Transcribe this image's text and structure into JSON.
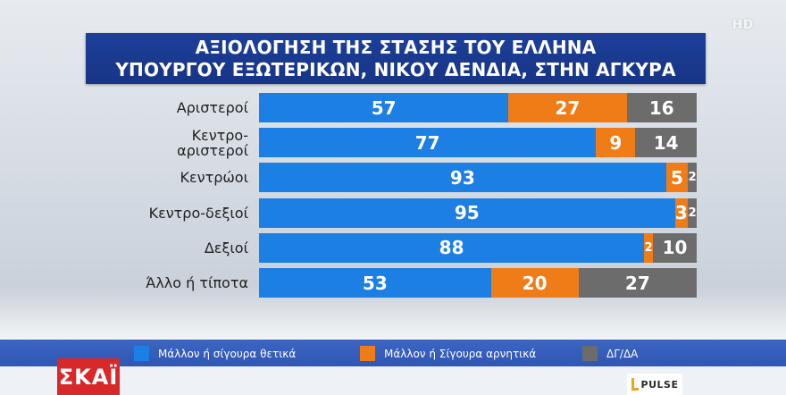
{
  "channel_badge": "HD",
  "title": {
    "line1": "ΑΞΙΟΛΟΓΗΣΗ ΤΗΣ ΣΤΑΣΗΣ ΤΟΥ ΕΛΛΗΝΑ",
    "line2": "ΥΠΟΥΡΓΟΥ ΕΞΩΤΕΡΙΚΩΝ, ΝΙΚΟΥ ΔΕΝΔΙΑ, ΣΤΗΝ ΑΓΚΥΡΑ"
  },
  "chart_data": {
    "type": "bar",
    "orientation": "horizontal",
    "stacked": true,
    "title": "ΑΞΙΟΛΟΓΗΣΗ ΤΗΣ ΣΤΑΣΗΣ ΤΟΥ ΕΛΛΗΝΑ ΥΠΟΥΡΓΟΥ ΕΞΩΤΕΡΙΚΩΝ, ΝΙΚΟΥ ΔΕΝΔΙΑ, ΣΤΗΝ ΑΓΚΥΡΑ",
    "categories": [
      "Αριστεροί",
      "Κεντρο-αριστεροί",
      "Κεντρώοι",
      "Κεντρο-δεξιοί",
      "Δεξιοί",
      "Άλλο ή τίποτα"
    ],
    "category_lines": [
      [
        "Αριστεροί"
      ],
      [
        "Κεντρο-",
        "αριστεροί"
      ],
      [
        "Κεντρώοι"
      ],
      [
        "Κεντρο-δεξιοί"
      ],
      [
        "Δεξιοί"
      ],
      [
        "Άλλο ή τίποτα"
      ]
    ],
    "series": [
      {
        "name": "Μάλλον ή σίγουρα θετικά",
        "color": "#1b7fe3",
        "values": [
          57,
          77,
          93,
          95,
          88,
          53
        ]
      },
      {
        "name": "Μάλλον ή Σίγουρα αρνητικά",
        "color": "#f07c18",
        "values": [
          27,
          9,
          5,
          3,
          2,
          20
        ]
      },
      {
        "name": "ΔΓ/ΔΑ",
        "color": "#6c6c6c",
        "values": [
          16,
          14,
          2,
          2,
          10,
          27
        ]
      }
    ],
    "xlim": [
      0,
      100
    ],
    "legend_position": "bottom"
  },
  "logos": {
    "channel": "ΣΚΑΪ",
    "pollster": "PULSE"
  }
}
